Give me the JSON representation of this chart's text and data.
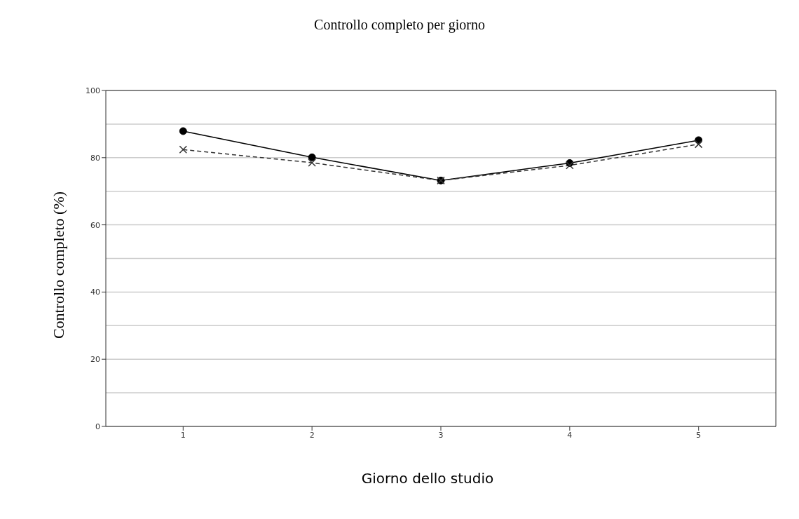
{
  "chart_data": {
    "type": "line",
    "title": "Controllo completo per giorno",
    "xlabel": "Giorno dello studio",
    "ylabel": "Controllo completo (%)",
    "categories": [
      "1",
      "2",
      "3",
      "4",
      "5"
    ],
    "series": [
      {
        "color": "#000000",
        "values": [
          87.9,
          80.1,
          73.2,
          78.4,
          85.2
        ],
        "marker": "circle",
        "line_style": "solid"
      },
      {
        "color": "#333333",
        "values": [
          82.4,
          78.5,
          73.2,
          77.7,
          84.0
        ],
        "marker": "cross",
        "line_style": "dashed"
      }
    ],
    "ylim": [
      0,
      100
    ],
    "yticks": [
      0,
      {
        "value": 10,
        "label": null
      },
      20,
      {
        "value": 30,
        "label": null
      },
      40,
      {
        "value": 50,
        "label": null
      },
      60,
      {
        "value": 70,
        "label": null
      },
      80,
      {
        "value": 90,
        "label": null
      },
      100
    ],
    "grid": "y"
  }
}
